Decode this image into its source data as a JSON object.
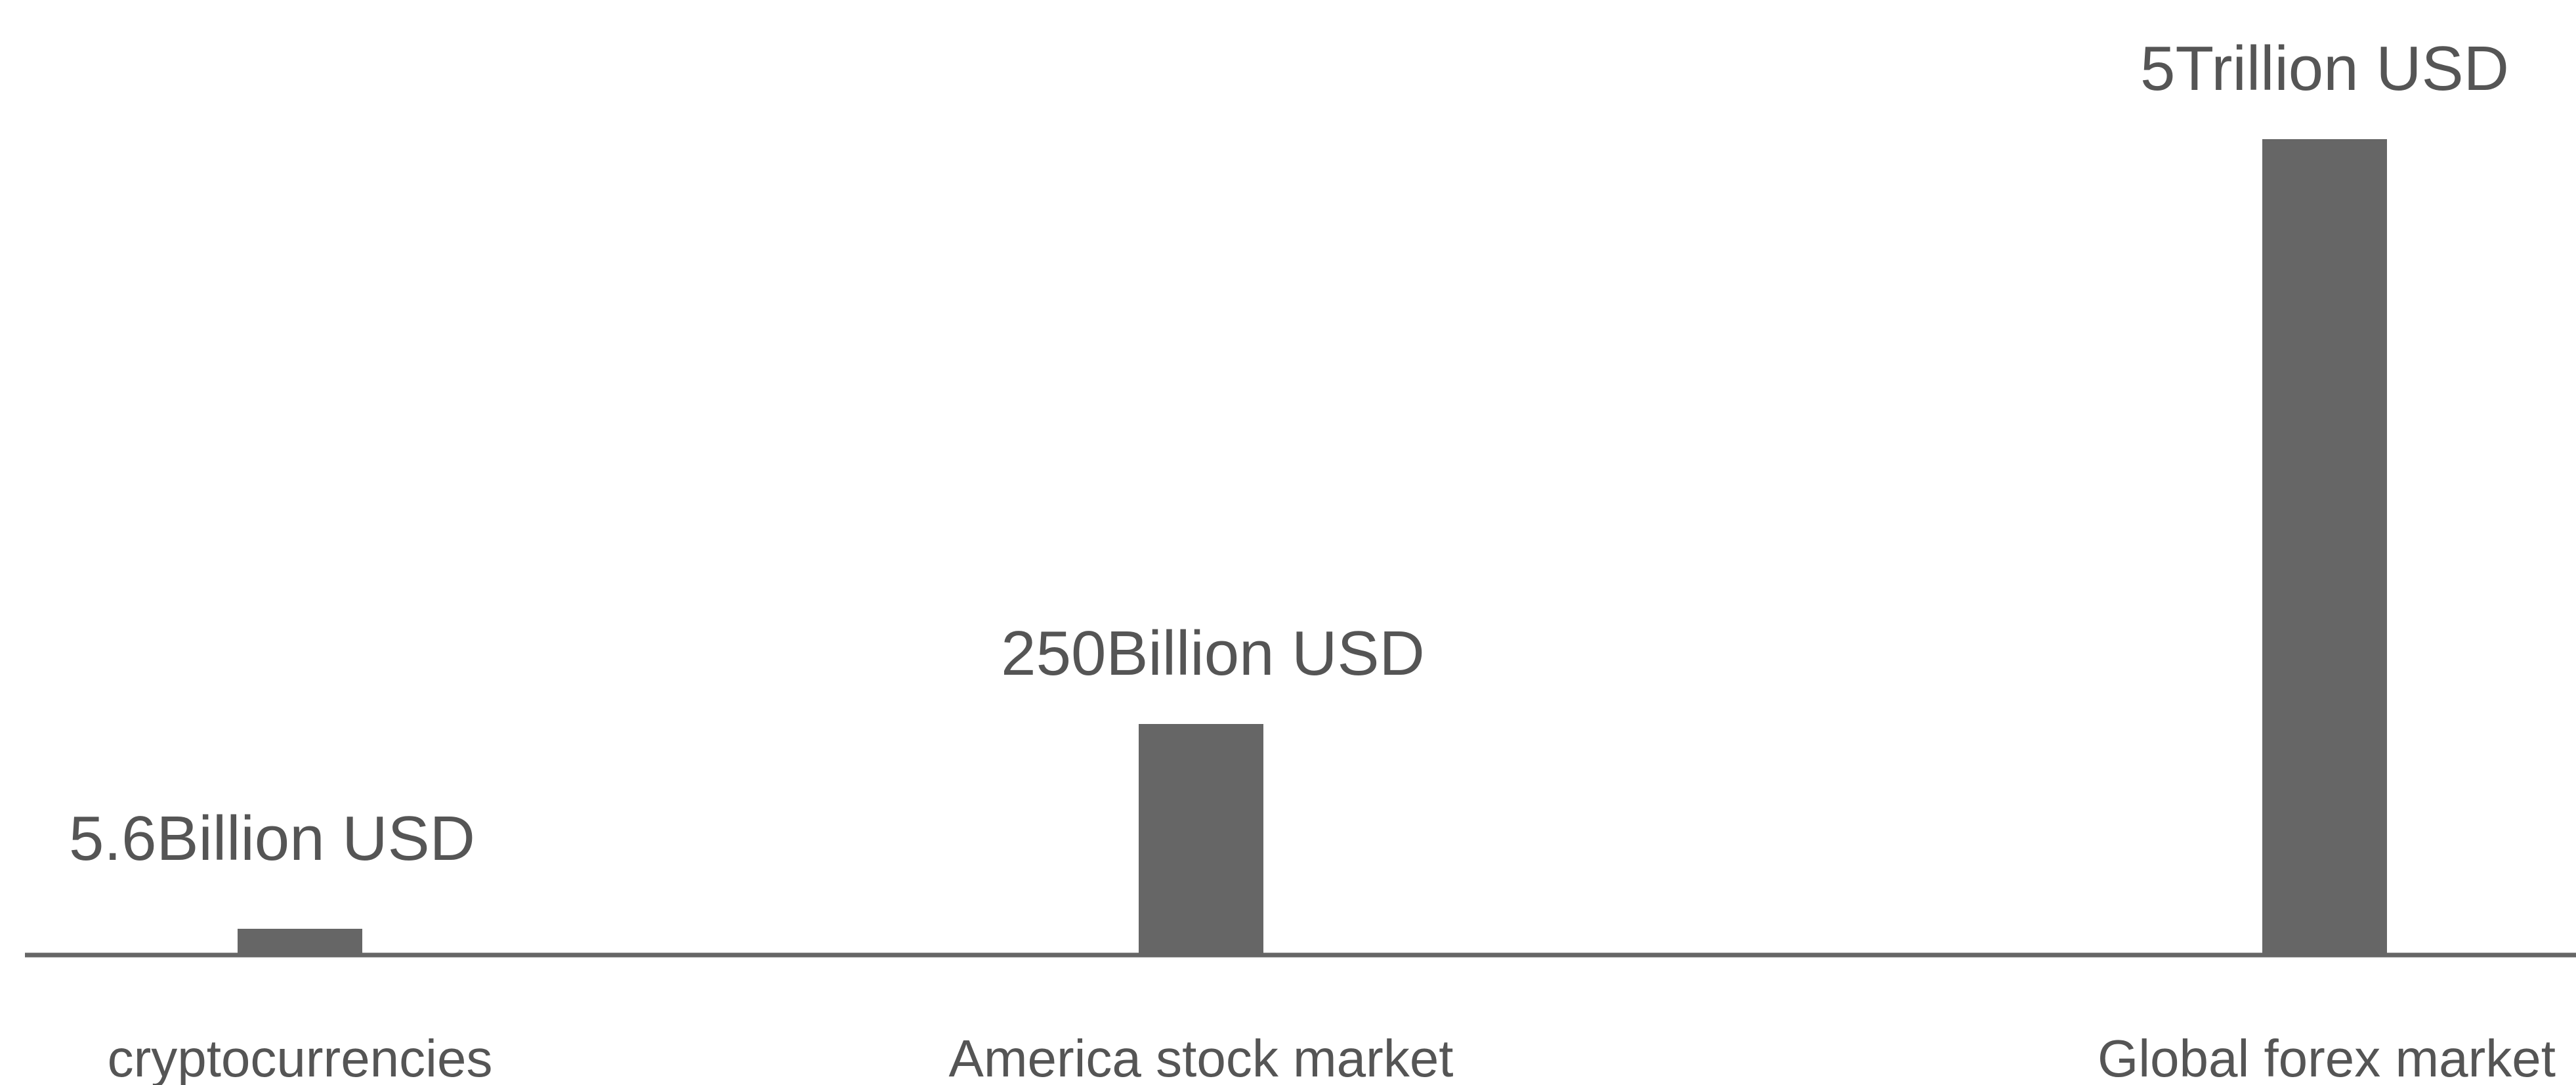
{
  "chart_data": {
    "type": "bar",
    "categories": [
      "cryptocurrencies",
      "America stock market",
      "Global forex market"
    ],
    "values": [
      5.6,
      250,
      5000
    ],
    "value_labels": [
      "5.6Billion USD",
      "250Billion USD",
      "5Trillion USD"
    ],
    "units": "Billion USD",
    "title": "",
    "xlabel": "",
    "ylabel": "",
    "grid": false,
    "legend": "none",
    "colors": {
      "bar": "#666666",
      "axis": "#666666",
      "text": "#555555"
    }
  }
}
